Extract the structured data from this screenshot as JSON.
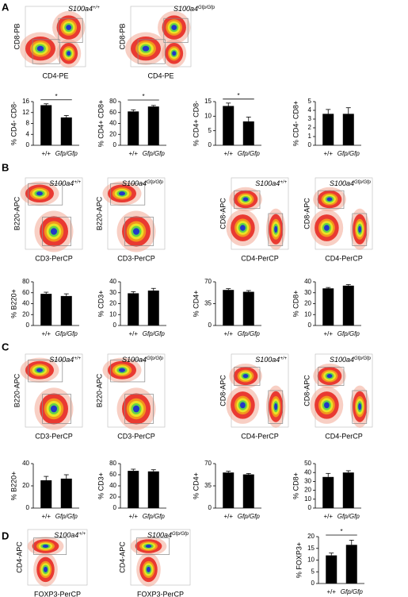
{
  "panels": [
    {
      "letter": "A",
      "flow_plots": [
        {
          "xlabel": "CD4-PE",
          "ylabel": "CD8-PB",
          "genotype": {
            "gene": "S100a4",
            "allele": "+/+"
          }
        },
        {
          "xlabel": "CD4-PE",
          "ylabel": "CD8-PB",
          "genotype": {
            "gene": "S100a4",
            "allele": "Gfp/Gfp"
          }
        }
      ]
    },
    {
      "letter": "B",
      "flow_plots": [
        {
          "xlabel": "CD3-PerCP",
          "ylabel": "B220-APC",
          "genotype": {
            "gene": "S100a4",
            "allele": "+/+"
          }
        },
        {
          "xlabel": "CD3-PerCP",
          "ylabel": "B220-APC",
          "genotype": {
            "gene": "S100a4",
            "allele": "Gfp/Gfp"
          }
        },
        {
          "xlabel": "CD4-PerCP",
          "ylabel": "CD8-APC",
          "genotype": {
            "gene": "S100a4",
            "allele": "+/+"
          }
        },
        {
          "xlabel": "CD4-PerCP",
          "ylabel": "CD8-APC",
          "genotype": {
            "gene": "S100a4",
            "allele": "Gfp/Gfp"
          }
        }
      ]
    },
    {
      "letter": "C",
      "flow_plots": [
        {
          "xlabel": "CD3-PerCP",
          "ylabel": "B220-APC",
          "genotype": {
            "gene": "S100a4",
            "allele": "+/+"
          }
        },
        {
          "xlabel": "CD3-PerCP",
          "ylabel": "B220-APC",
          "genotype": {
            "gene": "S100a4",
            "allele": "Gfp/Gfp"
          }
        },
        {
          "xlabel": "CD4-PerCP",
          "ylabel": "CD8-APC",
          "genotype": {
            "gene": "S100a4",
            "allele": "+/+"
          }
        },
        {
          "xlabel": "CD4-PerCP",
          "ylabel": "CD8-APC",
          "genotype": {
            "gene": "S100a4",
            "allele": "Gfp/Gfp"
          }
        }
      ]
    },
    {
      "letter": "D",
      "flow_plots": [
        {
          "xlabel": "FOXP3-PerCP",
          "ylabel": "CD4-APC",
          "genotype": {
            "gene": "S100a4",
            "allele": "+/+"
          }
        },
        {
          "xlabel": "FOXP3-PerCP",
          "ylabel": "CD4-APC",
          "genotype": {
            "gene": "S100a4",
            "allele": "Gfp/Gfp"
          }
        }
      ]
    }
  ],
  "chart_data": [
    {
      "type": "bar",
      "ylabel": "% CD4- CD8-",
      "categories": [
        "+/+",
        "Gfp/Gfp"
      ],
      "values": [
        14.7,
        10.2
      ],
      "errors": [
        0.5,
        0.7
      ],
      "ylim": [
        0,
        16
      ],
      "yticks": [
        0,
        4,
        8,
        12,
        16
      ],
      "significance": "*",
      "color": "#000000"
    },
    {
      "type": "bar",
      "ylabel": "% CD4+ CD8+",
      "categories": [
        "+/+",
        "Gfp/Gfp"
      ],
      "values": [
        62,
        71
      ],
      "errors": [
        3,
        2
      ],
      "ylim": [
        0,
        80
      ],
      "yticks": [
        0,
        20,
        40,
        60,
        80
      ],
      "significance": "*",
      "color": "#000000"
    },
    {
      "type": "bar",
      "ylabel": "% CD4+ CD8-",
      "categories": [
        "+/+",
        "Gfp/Gfp"
      ],
      "values": [
        13.5,
        8.2
      ],
      "errors": [
        1,
        1.5
      ],
      "ylim": [
        0,
        15
      ],
      "yticks": [
        0,
        5,
        10,
        15
      ],
      "significance": "*",
      "color": "#000000"
    },
    {
      "type": "bar",
      "ylabel": "% CD4- CD8+",
      "categories": [
        "+/+",
        "Gfp/Gfp"
      ],
      "values": [
        3.6,
        3.6
      ],
      "errors": [
        0.5,
        0.7
      ],
      "ylim": [
        0,
        5
      ],
      "yticks": [
        0,
        1,
        2,
        3,
        4,
        5
      ],
      "color": "#000000"
    },
    {
      "type": "bar",
      "ylabel": "% B220+",
      "categories": [
        "+/+",
        "Gfp/Gfp"
      ],
      "values": [
        58,
        54
      ],
      "errors": [
        3,
        4
      ],
      "ylim": [
        0,
        80
      ],
      "yticks": [
        0,
        20,
        40,
        60,
        80
      ],
      "color": "#000000"
    },
    {
      "type": "bar",
      "ylabel": "% CD3+",
      "categories": [
        "+/+",
        "Gfp/Gfp"
      ],
      "values": [
        29.5,
        32
      ],
      "errors": [
        1.5,
        2
      ],
      "ylim": [
        0,
        40
      ],
      "yticks": [
        0,
        10,
        20,
        30,
        40
      ],
      "color": "#000000"
    },
    {
      "type": "bar",
      "ylabel": "% CD4+",
      "categories": [
        "+/+",
        "Gfp/Gfp"
      ],
      "values": [
        57,
        54
      ],
      "errors": [
        2,
        2
      ],
      "ylim": [
        0,
        70
      ],
      "yticks": [
        0,
        35,
        70
      ],
      "color": "#000000"
    },
    {
      "type": "bar",
      "ylabel": "% CD8+",
      "categories": [
        "+/+",
        "Gfp/Gfp"
      ],
      "values": [
        34,
        36.5
      ],
      "errors": [
        0.8,
        1
      ],
      "ylim": [
        0,
        40
      ],
      "yticks": [
        0,
        10,
        20,
        30,
        40
      ],
      "color": "#000000"
    },
    {
      "type": "bar",
      "ylabel": "% B220+",
      "categories": [
        "+/+",
        "Gfp/Gfp"
      ],
      "values": [
        25,
        26.5
      ],
      "errors": [
        3.5,
        3.5
      ],
      "ylim": [
        0,
        40
      ],
      "yticks": [
        0,
        20,
        40
      ],
      "color": "#000000"
    },
    {
      "type": "bar",
      "ylabel": "% CD3+",
      "categories": [
        "+/+",
        "Gfp/Gfp"
      ],
      "values": [
        67,
        66
      ],
      "errors": [
        3,
        3
      ],
      "ylim": [
        0,
        80
      ],
      "yticks": [
        0,
        20,
        40,
        60,
        80
      ],
      "color": "#000000"
    },
    {
      "type": "bar",
      "ylabel": "% CD4+",
      "categories": [
        "+/+",
        "Gfp/Gfp"
      ],
      "values": [
        56,
        53
      ],
      "errors": [
        2,
        1.5
      ],
      "ylim": [
        0,
        70
      ],
      "yticks": [
        0,
        35,
        70
      ],
      "color": "#000000"
    },
    {
      "type": "bar",
      "ylabel": "% CD8+",
      "categories": [
        "+/+",
        "Gfp/Gfp"
      ],
      "values": [
        35,
        40
      ],
      "errors": [
        4,
        2
      ],
      "ylim": [
        0,
        50
      ],
      "yticks": [
        0,
        10,
        20,
        30,
        40,
        50
      ],
      "color": "#000000"
    },
    {
      "type": "bar",
      "ylabel": "% FOXP3+",
      "categories": [
        "+/+",
        "Gfp/Gfp"
      ],
      "values": [
        12,
        16.5
      ],
      "errors": [
        1,
        2
      ],
      "ylim": [
        0,
        20
      ],
      "yticks": [
        0,
        5,
        10,
        15,
        20
      ],
      "significance": "*",
      "color": "#000000"
    }
  ]
}
